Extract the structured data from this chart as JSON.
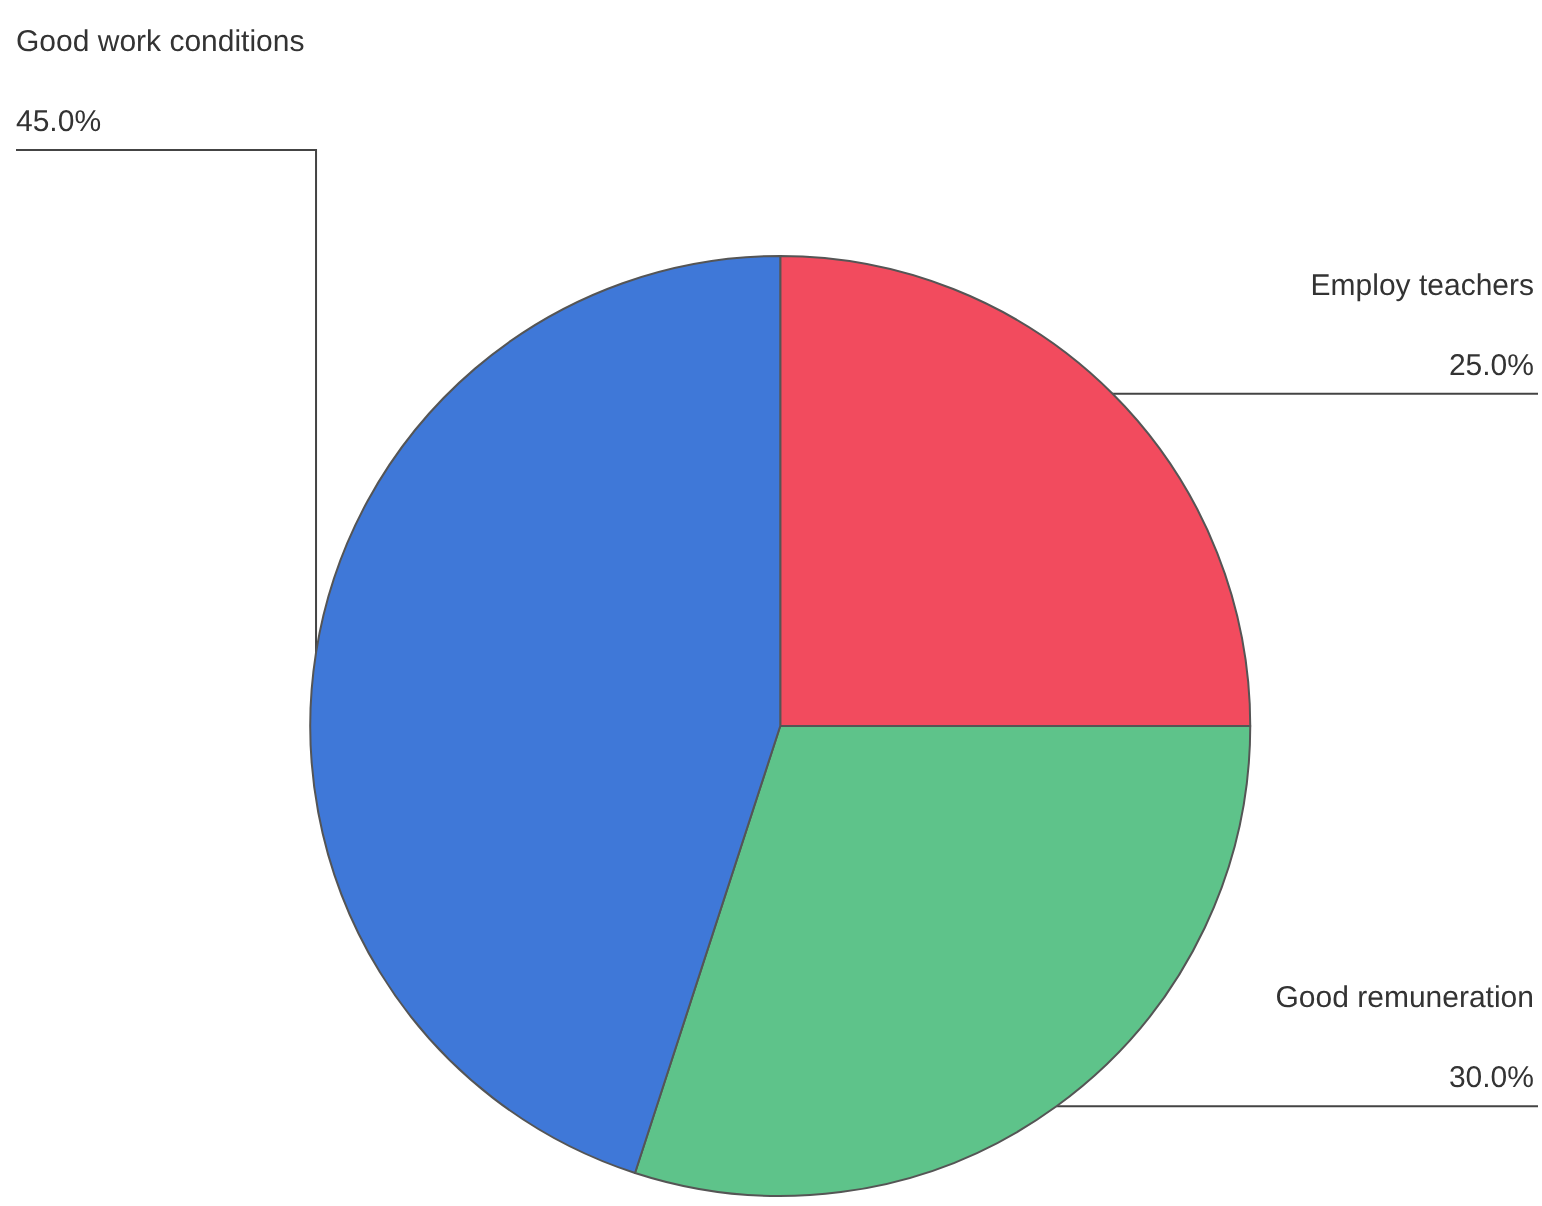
{
  "chart_data": {
    "type": "pie",
    "categories": [
      "Employ teachers",
      "Good remuneration",
      "Good work conditions"
    ],
    "values": [
      25,
      30,
      45
    ],
    "value_labels": [
      "25.0%",
      "30.0%",
      "45.0%"
    ],
    "colors": [
      "#f24b5e",
      "#5ec38a",
      "#3f78d8"
    ],
    "legend": false
  }
}
